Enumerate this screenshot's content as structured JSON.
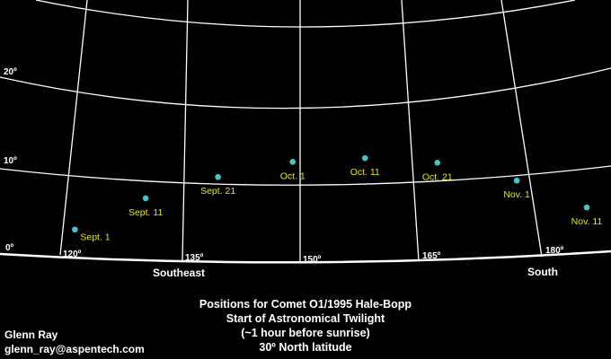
{
  "chart_data": {
    "type": "scatter",
    "title_lines": [
      "Positions for Comet O1/1995 Hale-Bopp",
      "Start of Astronomical Twilight",
      "(~1 hour before sunrise)",
      "30º North latitude"
    ],
    "x_ticks": [
      "120º",
      "135º",
      "150º",
      "165º",
      "180º"
    ],
    "x_tick_values": [
      120,
      135,
      150,
      165,
      180
    ],
    "y_ticks": [
      "0º",
      "10º",
      "20º"
    ],
    "y_tick_values": [
      0,
      10,
      20
    ],
    "direction_labels": [
      {
        "text": "Southeast",
        "azimuth": 135
      },
      {
        "text": "South",
        "azimuth": 180
      }
    ],
    "point_color": "#40c8c8",
    "label_color": "#e8e800",
    "points": [
      {
        "label": "Sept. 1",
        "azimuth": 121.3,
        "altitude": 3.3
      },
      {
        "label": "Sept. 11",
        "azimuth": 130.3,
        "altitude": 7.9
      },
      {
        "label": "Sept. 21",
        "azimuth": 139.5,
        "altitude": 11.0
      },
      {
        "label": "Oct. 1",
        "azimuth": 149.0,
        "altitude": 13.1
      },
      {
        "label": "Oct. 11",
        "azimuth": 158.2,
        "altitude": 13.5
      },
      {
        "label": "Oct. 21",
        "azimuth": 167.4,
        "altitude": 12.6
      },
      {
        "label": "Nov. 1",
        "azimuth": 177.5,
        "altitude": 9.7
      },
      {
        "label": "Nov. 11",
        "azimuth": 186.4,
        "altitude": 5.5
      }
    ]
  },
  "author": {
    "name": "Glenn Ray",
    "email": "glenn_ray@aspentech.com"
  }
}
